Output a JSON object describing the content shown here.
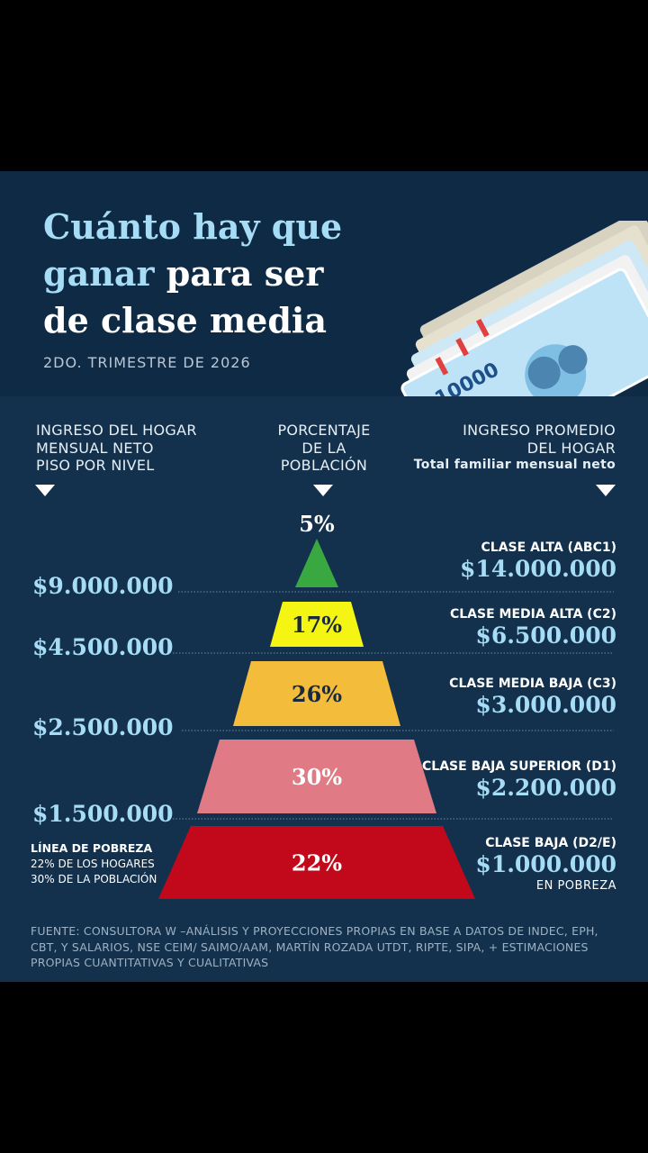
{
  "title_part1": "Cuánto hay que",
  "title_part2": "ganar",
  "title_part3": " para ser",
  "title_part4": "de clase media",
  "subtitle": "2DO. TRIMESTRE DE 2026",
  "columns": {
    "left": [
      "INGRESO DEL HOGAR",
      "MENSUAL NETO",
      "PISO POR NIVEL"
    ],
    "center": [
      "PORCENTAJE",
      "DE LA",
      "POBLACIÓN"
    ],
    "right": [
      "INGRESO PROMEDIO",
      "DEL HOGAR"
    ],
    "right_bold": "Total familiar mensual neto"
  },
  "poverty_line": {
    "label": "LÍNEA DE POBREZA",
    "households": "22% DE LOS HOGARES",
    "population": "30% DE LA POBLACIÓN"
  },
  "footer": "FUENTE: CONSULTORA W –ANÁLISIS Y PROYECCIONES PROPIAS EN BASE A DATOS DE INDEC, EPH, CBT, Y SALARIOS, NSE CEIM/ SAIMO/AAM, MARTÍN ROZADA UTDT, RIPTE, SIPA, + ESTIMACIONES PROPIAS CUANTITATIVAS Y CUALITATIVAS",
  "chart_data": {
    "type": "bar",
    "levels": [
      {
        "name": "CLASE ALTA (ABC1)",
        "percent": 5,
        "percent_label": "5%",
        "average": "$14.000.000",
        "color": "#3aa840",
        "label_color": "#ffffff",
        "label_outside": true,
        "note": ""
      },
      {
        "name": "CLASE MEDIA ALTA (C2)",
        "percent": 17,
        "percent_label": "17%",
        "average": "$6.500.000",
        "color": "#f5f513",
        "label_color": "#1a2a3a",
        "label_outside": false,
        "note": ""
      },
      {
        "name": "CLASE MEDIA BAJA (C3)",
        "percent": 26,
        "percent_label": "26%",
        "average": "$3.000.000",
        "color": "#f3bd3b",
        "label_color": "#1a2a3a",
        "label_outside": false,
        "note": ""
      },
      {
        "name": "CLASE BAJA SUPERIOR (D1)",
        "percent": 30,
        "percent_label": "30%",
        "average": "$2.200.000",
        "color": "#e07b85",
        "label_color": "#ffffff",
        "label_outside": false,
        "note": ""
      },
      {
        "name": "CLASE BAJA (D2/E)",
        "percent": 22,
        "percent_label": "22%",
        "average": "$1.000.000",
        "color": "#c2091b",
        "label_color": "#ffffff",
        "label_outside": false,
        "note": "EN POBREZA"
      }
    ],
    "thresholds": [
      "$9.000.000",
      "$4.500.000",
      "$2.500.000",
      "$1.500.000"
    ],
    "colors": {
      "amount": "#a6dcf5",
      "text": "#ffffff",
      "dotted_line": "#6f8aa3"
    }
  }
}
